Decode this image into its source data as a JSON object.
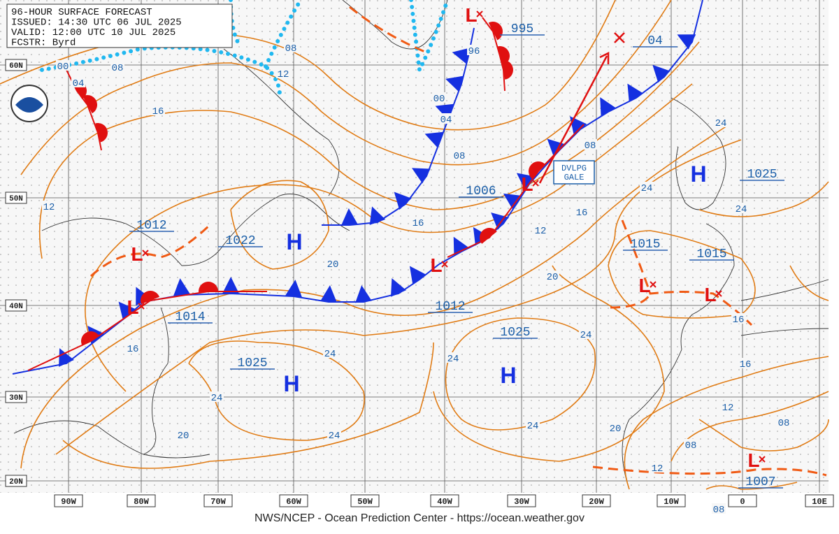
{
  "header": {
    "lines": [
      "96-HOUR SURFACE FORECAST",
      "ISSUED: 14:30 UTC 06 JUL 2025",
      "VALID:  12:00 UTC 10 JUL 2025",
      "FCSTR:  Byrd"
    ]
  },
  "logo": "NOAA",
  "latitude_labels": [
    "60N",
    "50N",
    "40N",
    "30N",
    "20N"
  ],
  "longitude_labels": [
    "90W",
    "80W",
    "70W",
    "60W",
    "50W",
    "40W",
    "30W",
    "20W",
    "10W",
    "0",
    "10E"
  ],
  "central_pressures": [
    "995",
    "04",
    "1006",
    "1012",
    "1022",
    "1014",
    "1012",
    "1025",
    "1025",
    "1015",
    "1015",
    "1025",
    "1007"
  ],
  "high_centers": [
    "H",
    "H",
    "H",
    "H"
  ],
  "low_centers": [
    "L",
    "L",
    "L",
    "L",
    "L",
    "L",
    "L",
    "L"
  ],
  "isobar_labels": [
    "08",
    "00",
    "08",
    "12",
    "04",
    "16",
    "96",
    "00",
    "04",
    "08",
    "08",
    "24",
    "24",
    "24",
    "16",
    "16",
    "12",
    "12",
    "20",
    "20",
    "16",
    "16",
    "24",
    "24",
    "24",
    "24",
    "24",
    "24",
    "16",
    "12",
    "08",
    "08",
    "20",
    "20",
    "12",
    "08"
  ],
  "warning": [
    "DVLPG",
    "GALE"
  ],
  "footer": "NWS/NCEP - Ocean Prediction Center - https://ocean.weather.gov"
}
